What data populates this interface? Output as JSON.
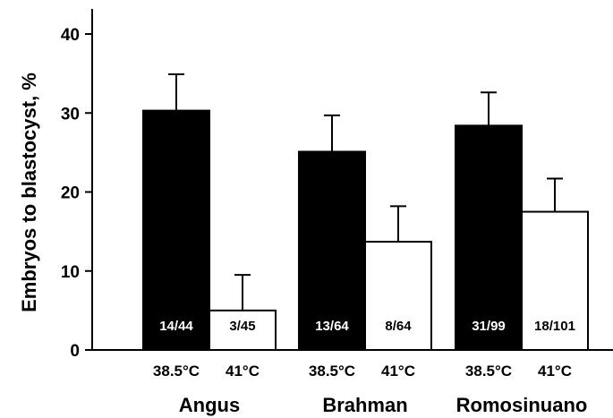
{
  "chart_data": {
    "type": "bar",
    "ylabel": "Embryos to blastocyst, %",
    "ylim": [
      0,
      40
    ],
    "yticks": [
      0,
      10,
      20,
      30,
      40
    ],
    "groups": [
      "Angus",
      "Brahman",
      "Romosinuano"
    ],
    "conditions": [
      {
        "label": "38.5°C",
        "color": "#000000",
        "text_color": "#ffffff"
      },
      {
        "label": "41°C",
        "color": "#ffffff",
        "text_color": "#000000"
      }
    ],
    "series": [
      {
        "name": "38.5°C",
        "values": [
          30.3,
          25.1,
          28.4
        ],
        "errors": [
          4.6,
          4.6,
          4.2
        ],
        "labels": [
          "14/44",
          "13/64",
          "31/99"
        ]
      },
      {
        "name": "41°C",
        "values": [
          5.0,
          13.7,
          17.5
        ],
        "errors": [
          4.5,
          4.5,
          4.2
        ],
        "labels": [
          "3/45",
          "8/64",
          "18/101"
        ]
      }
    ],
    "grid": false,
    "legend": "none"
  }
}
